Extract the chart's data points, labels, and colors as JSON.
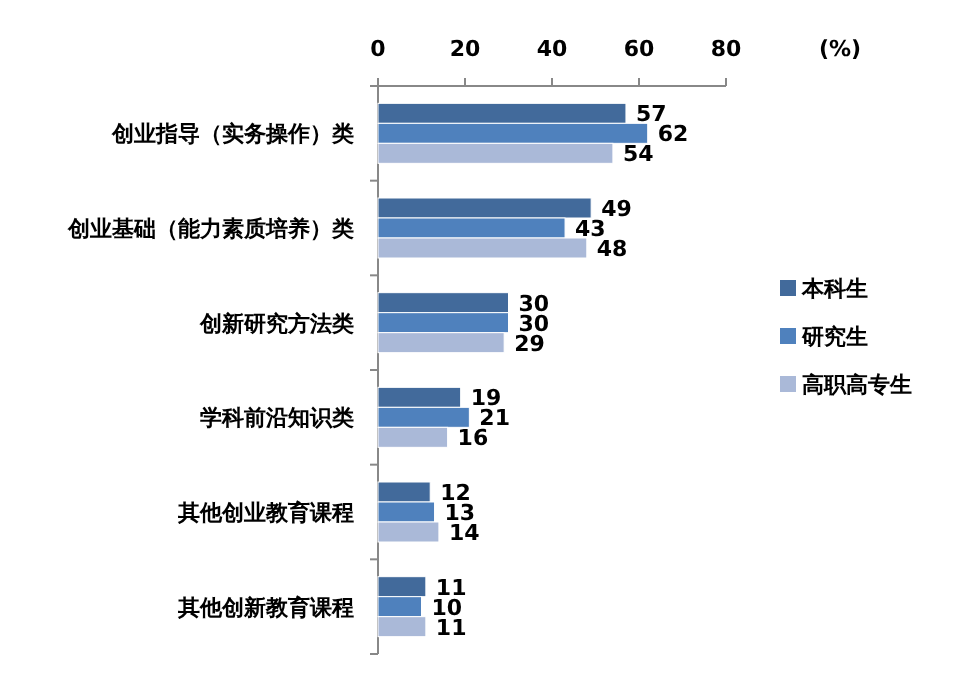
{
  "chart_data": {
    "type": "bar",
    "orientation": "horizontal",
    "xlabel": "(%)",
    "categories": [
      "创业指导（实务操作）类",
      "创业基础（能力素质培养）类",
      "创新研究方法类",
      "学科前沿知识类",
      "其他创业教育课程",
      "其他创新教育课程"
    ],
    "series": [
      {
        "name": "本科生",
        "color": "#426a9b",
        "values": [
          57,
          49,
          30,
          19,
          12,
          11
        ]
      },
      {
        "name": "研究生",
        "color": "#4f81bd",
        "values": [
          62,
          43,
          30,
          21,
          13,
          10
        ]
      },
      {
        "name": "高职高专生",
        "color": "#aab9d8",
        "values": [
          54,
          48,
          29,
          16,
          14,
          11
        ]
      }
    ],
    "xlim": [
      0,
      80
    ],
    "xticks": [
      0,
      20,
      40,
      60,
      80
    ],
    "data_labels": true,
    "legend": "right",
    "grid": false
  }
}
